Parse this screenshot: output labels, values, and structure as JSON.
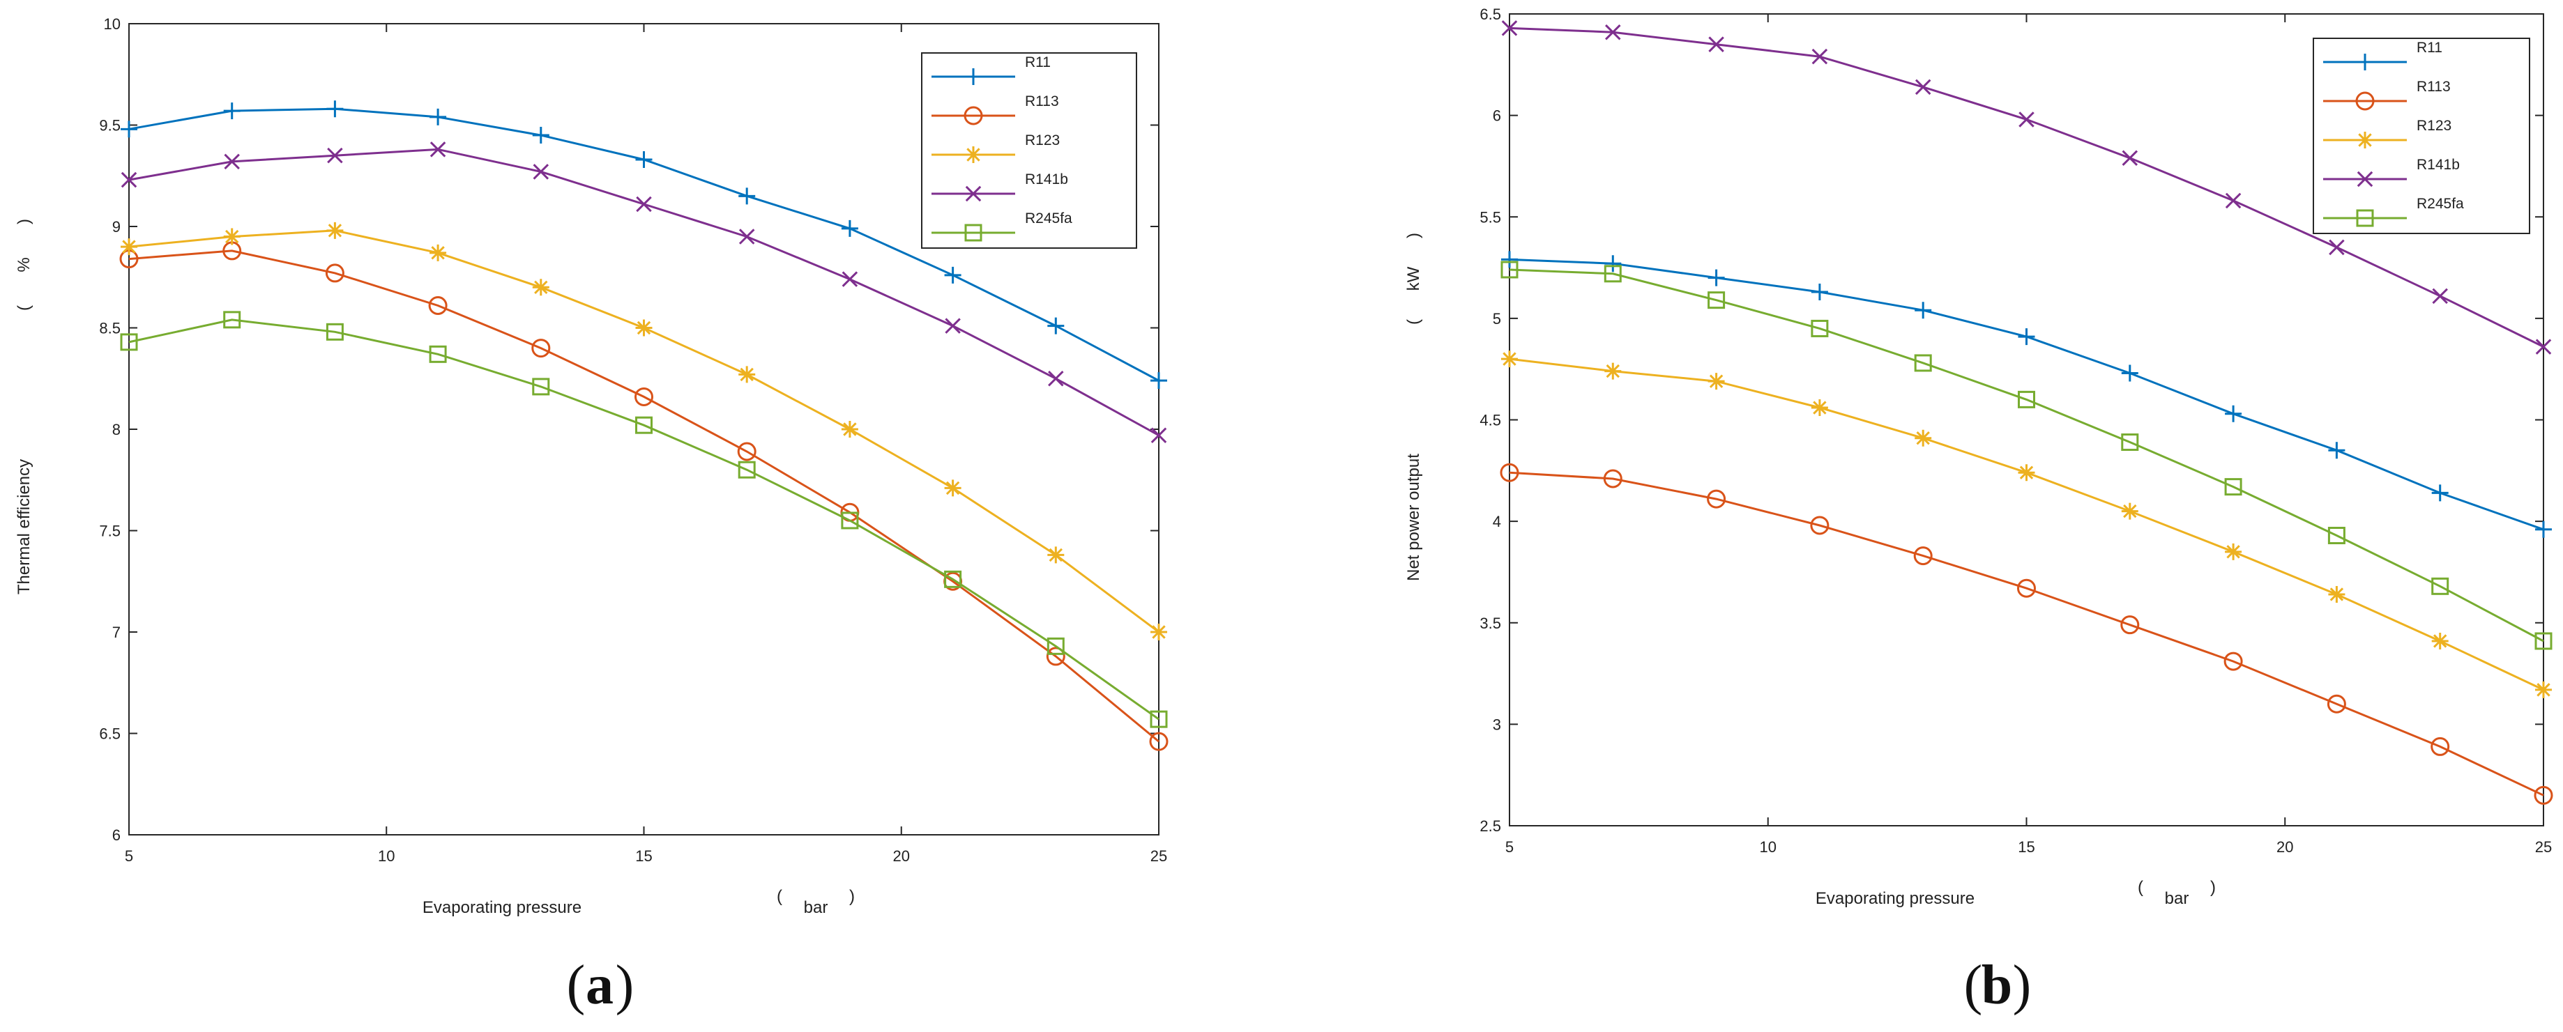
{
  "panel_labels": [
    "a",
    "b"
  ],
  "series_colors": {
    "R11": "#0072BD",
    "R113": "#D95319",
    "R123": "#EDB120",
    "R141b": "#7E2F8E",
    "R245fa": "#77AC30"
  },
  "series_markers": {
    "R11": "plus",
    "R113": "circle",
    "R123": "asterisk",
    "R141b": "cross",
    "R245fa": "square"
  },
  "chart_data": [
    {
      "type": "line",
      "panel": "a",
      "xlabel": "Evaporating pressure",
      "xunit": "bar",
      "ylabel": "Thermal efficiency",
      "yunit": "%",
      "xlim": [
        5,
        25
      ],
      "ylim": [
        6,
        10
      ],
      "xticks": [
        "5",
        "10",
        "15",
        "20",
        "25"
      ],
      "yticks": [
        "6",
        "6.5",
        "7",
        "7.5",
        "8",
        "8.5",
        "9",
        "9.5",
        "10"
      ],
      "legend_position": "top-right",
      "x": [
        5,
        7,
        9,
        11,
        13,
        15,
        17,
        19,
        21,
        23,
        25
      ],
      "series": [
        {
          "name": "R11",
          "values": [
            9.48,
            9.57,
            9.58,
            9.54,
            9.45,
            9.33,
            9.15,
            8.99,
            8.76,
            8.51,
            8.24
          ]
        },
        {
          "name": "R113",
          "values": [
            8.84,
            8.88,
            8.77,
            8.61,
            8.4,
            8.16,
            7.89,
            7.59,
            7.25,
            6.88,
            6.46
          ]
        },
        {
          "name": "R123",
          "values": [
            8.9,
            8.95,
            8.98,
            8.87,
            8.7,
            8.5,
            8.27,
            8.0,
            7.71,
            7.38,
            7.0
          ]
        },
        {
          "name": "R141b",
          "values": [
            9.23,
            9.32,
            9.35,
            9.38,
            9.27,
            9.11,
            8.95,
            8.74,
            8.51,
            8.25,
            7.97
          ]
        },
        {
          "name": "R245fa",
          "values": [
            8.43,
            8.54,
            8.48,
            8.37,
            8.21,
            8.02,
            7.8,
            7.55,
            7.26,
            6.93,
            6.57
          ]
        }
      ]
    },
    {
      "type": "line",
      "panel": "b",
      "xlabel": "Evaporating pressure",
      "xunit": "bar",
      "ylabel": "Net power output",
      "yunit": "kW",
      "xlim": [
        5,
        25
      ],
      "ylim": [
        2.5,
        6.5
      ],
      "xticks": [
        "5",
        "10",
        "15",
        "20",
        "25"
      ],
      "yticks": [
        "2.5",
        "3",
        "3.5",
        "4",
        "4.5",
        "5",
        "5.5",
        "6",
        "6.5"
      ],
      "legend_position": "top-right",
      "x": [
        5,
        7,
        9,
        11,
        13,
        15,
        17,
        19,
        21,
        23,
        25
      ],
      "series": [
        {
          "name": "R11",
          "values": [
            5.29,
            5.27,
            5.2,
            5.13,
            5.04,
            4.91,
            4.73,
            4.53,
            4.35,
            4.14,
            3.96
          ]
        },
        {
          "name": "R113",
          "values": [
            4.24,
            4.21,
            4.11,
            3.98,
            3.83,
            3.67,
            3.49,
            3.31,
            3.1,
            2.89,
            2.65
          ]
        },
        {
          "name": "R123",
          "values": [
            4.8,
            4.74,
            4.69,
            4.56,
            4.41,
            4.24,
            4.05,
            3.85,
            3.64,
            3.41,
            3.17
          ]
        },
        {
          "name": "R141b",
          "values": [
            6.43,
            6.41,
            6.35,
            6.29,
            6.14,
            5.98,
            5.79,
            5.58,
            5.35,
            5.11,
            4.86
          ]
        },
        {
          "name": "R245fa",
          "values": [
            5.24,
            5.22,
            5.09,
            4.95,
            4.78,
            4.6,
            4.39,
            4.17,
            3.93,
            3.68,
            3.41
          ]
        }
      ]
    }
  ]
}
